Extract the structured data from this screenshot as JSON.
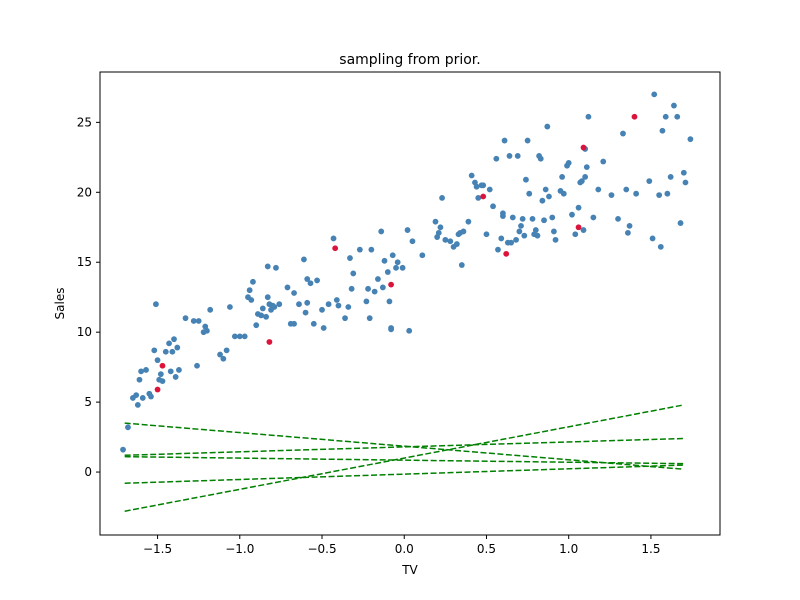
{
  "chart_data": {
    "type": "scatter",
    "title": "sampling from prior.",
    "xlabel": "TV",
    "ylabel": "Sales",
    "xlim": [
      -1.85,
      1.92
    ],
    "ylim": [
      -4.5,
      28.6
    ],
    "xticks": [
      -1.5,
      -1.0,
      -0.5,
      0.0,
      0.5,
      1.0,
      1.5
    ],
    "xtick_labels": [
      "−1.5",
      "−1.0",
      "−0.5",
      "0.0",
      "0.5",
      "1.0",
      "1.5"
    ],
    "yticks": [
      0,
      5,
      10,
      15,
      20,
      25
    ],
    "ytick_labels": [
      "0",
      "5",
      "10",
      "15",
      "20",
      "25"
    ],
    "grid": false,
    "colors": {
      "train": "#4682b4",
      "test": "#dc143c",
      "prior_lines": "#008000"
    },
    "series": [
      {
        "role": "train",
        "points": [
          [
            -1.71,
            1.6
          ],
          [
            -1.68,
            3.2
          ],
          [
            -1.65,
            5.3
          ],
          [
            -1.63,
            5.5
          ],
          [
            -1.62,
            4.8
          ],
          [
            -1.61,
            6.6
          ],
          [
            -1.6,
            7.2
          ],
          [
            -1.59,
            5.3
          ],
          [
            -1.57,
            7.3
          ],
          [
            -1.55,
            5.6
          ],
          [
            -1.54,
            5.4
          ],
          [
            -1.52,
            8.7
          ],
          [
            -1.51,
            12.0
          ],
          [
            -1.5,
            8.0
          ],
          [
            -1.49,
            6.6
          ],
          [
            -1.48,
            7.0
          ],
          [
            -1.47,
            6.5
          ],
          [
            -1.45,
            8.6
          ],
          [
            -1.43,
            9.2
          ],
          [
            -1.42,
            7.2
          ],
          [
            -1.41,
            8.6
          ],
          [
            -1.4,
            9.5
          ],
          [
            -1.39,
            6.8
          ],
          [
            -1.38,
            8.9
          ],
          [
            -1.37,
            7.3
          ],
          [
            -1.33,
            11.0
          ],
          [
            -1.28,
            10.8
          ],
          [
            -1.26,
            7.6
          ],
          [
            -1.25,
            10.8
          ],
          [
            -1.22,
            10.0
          ],
          [
            -1.21,
            10.4
          ],
          [
            -1.2,
            10.1
          ],
          [
            -1.18,
            11.6
          ],
          [
            -1.12,
            8.4
          ],
          [
            -1.1,
            8.1
          ],
          [
            -1.08,
            8.7
          ],
          [
            -1.06,
            11.8
          ],
          [
            -1.03,
            9.7
          ],
          [
            -1.0,
            9.7
          ],
          [
            -0.97,
            9.7
          ],
          [
            -0.95,
            12.5
          ],
          [
            -0.93,
            12.3
          ],
          [
            -0.92,
            13.6
          ],
          [
            -0.9,
            10.5
          ],
          [
            -0.89,
            11.3
          ],
          [
            -0.87,
            11.2
          ],
          [
            -0.86,
            11.7
          ],
          [
            -0.84,
            11.1
          ],
          [
            -0.83,
            12.5
          ],
          [
            -0.83,
            14.7
          ],
          [
            -0.82,
            12.0
          ],
          [
            -0.81,
            11.6
          ],
          [
            -0.8,
            11.9
          ],
          [
            -0.79,
            11.8
          ],
          [
            -0.78,
            14.6
          ],
          [
            -0.76,
            12.0
          ],
          [
            -0.71,
            13.2
          ],
          [
            -0.69,
            10.6
          ],
          [
            -0.67,
            12.8
          ],
          [
            -0.67,
            10.6
          ],
          [
            -0.64,
            12.0
          ],
          [
            -0.61,
            15.2
          ],
          [
            -0.6,
            11.4
          ],
          [
            -0.59,
            13.8
          ],
          [
            -0.59,
            12.1
          ],
          [
            -0.57,
            13.5
          ],
          [
            -0.55,
            10.6
          ],
          [
            -0.53,
            13.7
          ],
          [
            -0.5,
            11.6
          ],
          [
            -0.49,
            10.3
          ],
          [
            -0.46,
            12.0
          ],
          [
            -0.43,
            16.7
          ],
          [
            -0.41,
            12.3
          ],
          [
            -0.4,
            11.9
          ],
          [
            -0.36,
            11.0
          ],
          [
            -0.34,
            11.8
          ],
          [
            -0.33,
            15.3
          ],
          [
            -0.32,
            13.1
          ],
          [
            -0.31,
            14.2
          ],
          [
            -0.27,
            15.9
          ],
          [
            -0.23,
            12.2
          ],
          [
            -0.21,
            11.0
          ],
          [
            -0.2,
            15.9
          ],
          [
            -0.18,
            12.9
          ],
          [
            -0.16,
            13.8
          ],
          [
            -0.14,
            17.2
          ],
          [
            -0.13,
            13.2
          ],
          [
            -0.12,
            15.1
          ],
          [
            -0.1,
            14.3
          ],
          [
            -0.09,
            12.2
          ],
          [
            -0.08,
            10.3
          ],
          [
            -0.08,
            10.2
          ],
          [
            -0.07,
            15.5
          ],
          [
            -0.05,
            14.6
          ],
          [
            -0.04,
            15.0
          ],
          [
            -0.01,
            14.6
          ],
          [
            0.02,
            17.3
          ],
          [
            0.03,
            10.1
          ],
          [
            0.05,
            16.5
          ],
          [
            0.11,
            15.5
          ],
          [
            0.19,
            17.9
          ],
          [
            0.2,
            16.8
          ],
          [
            0.21,
            17.1
          ],
          [
            0.22,
            17.5
          ],
          [
            0.23,
            19.6
          ],
          [
            0.25,
            16.6
          ],
          [
            0.28,
            16.5
          ],
          [
            0.3,
            16.1
          ],
          [
            0.32,
            16.3
          ],
          [
            0.33,
            17.0
          ],
          [
            0.34,
            17.1
          ],
          [
            0.35,
            14.8
          ],
          [
            0.36,
            17.2
          ],
          [
            0.39,
            17.9
          ],
          [
            0.41,
            21.2
          ],
          [
            0.43,
            20.7
          ],
          [
            0.44,
            20.4
          ],
          [
            0.45,
            19.6
          ],
          [
            0.47,
            20.5
          ],
          [
            0.48,
            20.5
          ],
          [
            0.5,
            17.0
          ],
          [
            0.52,
            20.2
          ],
          [
            0.54,
            19.0
          ],
          [
            0.56,
            22.4
          ],
          [
            0.57,
            15.9
          ],
          [
            0.59,
            16.7
          ],
          [
            0.6,
            18.3
          ],
          [
            0.61,
            23.7
          ],
          [
            0.63,
            16.4
          ],
          [
            0.64,
            22.6
          ],
          [
            0.65,
            16.4
          ],
          [
            0.66,
            18.2
          ],
          [
            0.68,
            16.6
          ],
          [
            0.69,
            22.6
          ],
          [
            0.7,
            17.2
          ],
          [
            0.71,
            17.6
          ],
          [
            0.72,
            18.1
          ],
          [
            0.73,
            16.9
          ],
          [
            0.74,
            20.9
          ],
          [
            0.75,
            23.7
          ],
          [
            0.76,
            19.9
          ],
          [
            0.78,
            18.1
          ],
          [
            0.79,
            17.0
          ],
          [
            0.8,
            17.3
          ],
          [
            0.81,
            16.9
          ],
          [
            0.82,
            22.6
          ],
          [
            0.83,
            22.4
          ],
          [
            0.84,
            19.4
          ],
          [
            0.85,
            18.0
          ],
          [
            0.86,
            20.2
          ],
          [
            0.87,
            24.7
          ],
          [
            0.88,
            19.7
          ],
          [
            0.9,
            18.2
          ],
          [
            0.91,
            17.2
          ],
          [
            0.92,
            16.6
          ],
          [
            0.95,
            20.1
          ],
          [
            0.96,
            21.1
          ],
          [
            0.97,
            19.9
          ],
          [
            0.99,
            21.9
          ],
          [
            1.0,
            22.1
          ],
          [
            1.02,
            18.4
          ],
          [
            1.04,
            17.0
          ],
          [
            1.06,
            18.9
          ],
          [
            1.07,
            20.7
          ],
          [
            1.08,
            20.8
          ],
          [
            1.09,
            17.3
          ],
          [
            1.1,
            21.1
          ],
          [
            1.11,
            21.8
          ],
          [
            1.12,
            25.4
          ],
          [
            1.15,
            18.2
          ],
          [
            1.18,
            20.2
          ],
          [
            1.21,
            22.2
          ],
          [
            1.26,
            19.8
          ],
          [
            1.3,
            18.1
          ],
          [
            1.33,
            24.2
          ],
          [
            1.35,
            20.2
          ],
          [
            1.36,
            17.1
          ],
          [
            1.37,
            17.6
          ],
          [
            1.41,
            19.9
          ],
          [
            1.49,
            20.8
          ],
          [
            1.51,
            16.7
          ],
          [
            1.52,
            27.0
          ],
          [
            1.55,
            19.8
          ],
          [
            1.56,
            16.1
          ],
          [
            1.57,
            24.4
          ],
          [
            1.59,
            25.4
          ],
          [
            1.6,
            19.9
          ],
          [
            1.62,
            21.1
          ],
          [
            1.64,
            26.2
          ],
          [
            1.66,
            25.4
          ],
          [
            1.68,
            17.8
          ],
          [
            1.7,
            21.4
          ],
          [
            1.71,
            20.7
          ],
          [
            1.74,
            23.8
          ],
          [
            1.1,
            23.1
          ],
          [
            0.6,
            18.5
          ],
          [
            -0.22,
            13.1
          ],
          [
            -0.94,
            13.0
          ]
        ]
      },
      {
        "role": "test",
        "points": [
          [
            -1.5,
            5.9
          ],
          [
            -1.47,
            7.6
          ],
          [
            -0.82,
            9.3
          ],
          [
            -0.42,
            16.0
          ],
          [
            -0.08,
            13.4
          ],
          [
            0.48,
            19.7
          ],
          [
            0.62,
            15.6
          ],
          [
            1.06,
            17.5
          ],
          [
            1.09,
            23.2
          ],
          [
            1.4,
            25.4
          ]
        ]
      }
    ],
    "prior_lines": [
      {
        "x": [
          -1.7,
          1.7
        ],
        "y": [
          3.5,
          0.2
        ]
      },
      {
        "x": [
          -1.7,
          1.7
        ],
        "y": [
          1.2,
          2.4
        ]
      },
      {
        "x": [
          -1.7,
          1.7
        ],
        "y": [
          1.1,
          0.6
        ]
      },
      {
        "x": [
          -1.7,
          1.7
        ],
        "y": [
          -0.8,
          0.5
        ]
      },
      {
        "x": [
          -1.7,
          1.7
        ],
        "y": [
          -2.8,
          4.8
        ]
      }
    ]
  }
}
